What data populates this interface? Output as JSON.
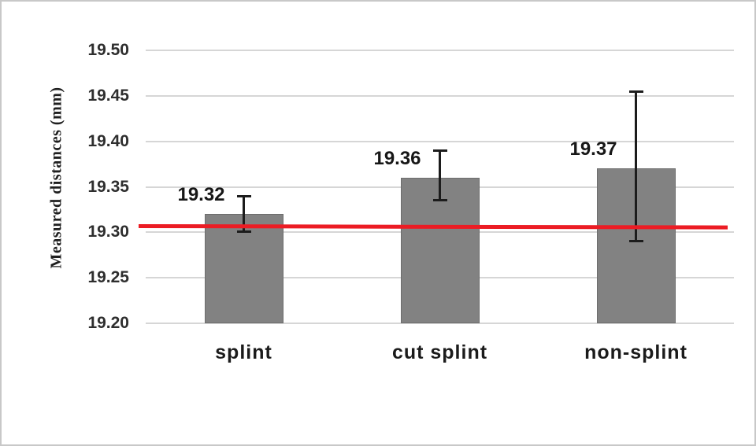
{
  "chart_data": {
    "type": "bar",
    "title": "",
    "xlabel": "",
    "ylabel": "Measured distances (mm)",
    "categories": [
      "splint",
      "cut splint",
      "non-splint"
    ],
    "values": [
      19.32,
      19.36,
      19.37
    ],
    "value_labels": [
      "19.32",
      "19.36",
      "19.37"
    ],
    "error_bars": [
      {
        "low": 19.3,
        "high": 19.34
      },
      {
        "low": 19.335,
        "high": 19.39
      },
      {
        "low": 19.29,
        "high": 19.455
      }
    ],
    "y_axis": {
      "min": 19.2,
      "max": 19.5,
      "step": 0.05,
      "tick_labels": [
        "19.50",
        "19.45",
        "19.40",
        "19.35",
        "19.30",
        "19.25",
        "19.20"
      ]
    },
    "reference_line": {
      "value": 19.307
    },
    "grid": "horizontal",
    "legend": "none"
  },
  "colors": {
    "bar_fill": "#828282",
    "bar_border": "#6d6d6d",
    "gridline": "#d6d6d6",
    "reference_line": "#ec1c24",
    "error_bar": "#1c1c1c",
    "frame_border": "#c8c8c8",
    "background": "#ffffff"
  }
}
